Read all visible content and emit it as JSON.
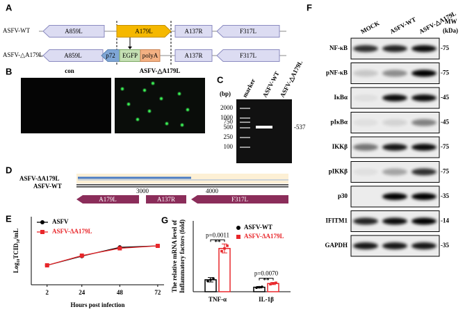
{
  "panels": {
    "A": {
      "label": "A",
      "rows": [
        {
          "name": "ASFV-WT",
          "genes": [
            "A859L",
            "A179L",
            "A137R",
            "F317L"
          ]
        },
        {
          "name": "ASFV-△A179L",
          "genes": [
            "A859L",
            "p72",
            "EGFP",
            "polyA",
            "A137R",
            "F317L"
          ]
        }
      ]
    },
    "B": {
      "label": "B",
      "images": [
        "con",
        "ASFV-△A179L"
      ]
    },
    "C": {
      "label": "C",
      "unit": "(bp)",
      "lanes": [
        "marker",
        "ASFV-WT",
        "ASFV-△A179L"
      ],
      "ladder": [
        "2000",
        "1000",
        "750",
        "500",
        "250",
        "100"
      ],
      "band": "-537"
    },
    "D": {
      "label": "D",
      "tracks": [
        "ASFV-ΔA179L",
        "ASFV-WT"
      ],
      "scale": [
        "3000",
        "4000"
      ],
      "genes": [
        "A179L",
        "A137R",
        "F317L"
      ]
    },
    "E": {
      "label": "E"
    },
    "G": {
      "label": "G"
    },
    "F": {
      "label": "F",
      "lanes": [
        "MOCK",
        "ASFV-WT",
        "ASFV-△A179L"
      ],
      "mw_title": [
        "MW",
        "(kDa)"
      ],
      "rows": [
        {
          "protein": "NF-κB",
          "mw": "-75"
        },
        {
          "protein": "pNF-κB",
          "mw": "-75"
        },
        {
          "protein": "IκBα",
          "mw": "-45"
        },
        {
          "protein": "pIκBα",
          "mw": "-45"
        },
        {
          "protein": "IKKβ",
          "mw": "-75"
        },
        {
          "protein": "pIKKβ",
          "mw": "-75"
        },
        {
          "protein": "p30",
          "mw": "-35"
        },
        {
          "protein": "IFITM1",
          "mw": "-14"
        },
        {
          "protein": "GAPDH",
          "mw": "-35"
        }
      ]
    }
  },
  "chart_data": [
    {
      "type": "line",
      "xlabel": "Hours post infection",
      "ylabel": "Log₁₀TCID₅₀/mL",
      "x": [
        2,
        24,
        48,
        72
      ],
      "xlim": [
        -8,
        76
      ],
      "xticks": [
        2,
        24,
        48,
        72
      ],
      "ylim": [
        -2,
        12
      ],
      "legend": "upper left",
      "series": [
        {
          "name": "ASFV",
          "color": "#000000",
          "marker": "circle",
          "values": [
            2,
            3.9,
            5.7,
            6
          ]
        },
        {
          "name": "ASFV-ΔA179L",
          "color": "#e8262a",
          "marker": "square",
          "values": [
            2,
            4,
            5.5,
            6
          ]
        }
      ]
    },
    {
      "type": "bar",
      "ylabel": [
        "The relative mRNA level of",
        "Inflammatory factors (fold)"
      ],
      "categories": [
        "TNF-α",
        "IL-1β"
      ],
      "ylim": [
        0,
        95
      ],
      "legend": "upper right",
      "annotations": [
        [
          "p=0.0011",
          "**"
        ],
        [
          "p=0.0070",
          "**"
        ]
      ],
      "series": [
        {
          "name": "ASFV-WT",
          "color": "#000000",
          "marker": "circle",
          "values": [
            16,
            6
          ],
          "errors": [
            3,
            1
          ]
        },
        {
          "name": "ASFV-ΔA179L",
          "color": "#e8262a",
          "marker": "square",
          "values": [
            58,
            11
          ],
          "errors": [
            6,
            1.5
          ]
        }
      ]
    }
  ]
}
